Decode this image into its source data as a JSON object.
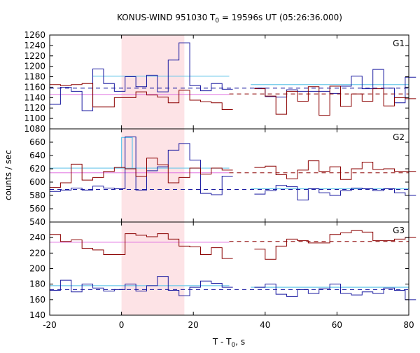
{
  "chart_data": {
    "type": "line",
    "title_main": "KONUS-WIND 951030 T",
    "title_sub": "0",
    "title_rest": " = 19596s UT (05:26:36.000)",
    "xlabel_main": "T - T",
    "xlabel_sub": "0",
    "xlabel_rest": ", s",
    "ylabel": "counts / sec",
    "x_ticks": [
      "-20",
      "0",
      "20",
      "40",
      "60",
      "80"
    ],
    "x_tick_values": [
      -20,
      0,
      20,
      40,
      60,
      80
    ],
    "xlim": [
      -20,
      80
    ],
    "highlight_interval": [
      0,
      17.5
    ],
    "colors": {
      "highlight": "#fde3e6",
      "red": "#8b0000",
      "blue": "#1a1aa0",
      "cyan": "#6cc8ea",
      "pink": "#e070e0",
      "dash_red": "#8b0000",
      "dash_blue": "#1a1aa0"
    },
    "panels": [
      {
        "label": "G1",
        "ylim": [
          1080,
          1260
        ],
        "y_ticks": [
          "1080",
          "1100",
          "1120",
          "1140",
          "1160",
          "1180",
          "1200",
          "1220",
          "1240",
          "1260"
        ],
        "y_tick_values": [
          1080,
          1100,
          1120,
          1140,
          1160,
          1180,
          1200,
          1220,
          1240,
          1260
        ],
        "background": 1146,
        "bg_dash_red": 1147,
        "bg_dash_blue": 1158,
        "bg_extent": [
          30,
          80
        ],
        "cyan_level": 1181,
        "cyan_range": [
          -8,
          30
        ],
        "cyan_level2": 1165,
        "cyan_range2": [
          36,
          80
        ],
        "red_x": [
          -20,
          -17,
          -14,
          -11,
          -8,
          -5,
          -2,
          1,
          4,
          7,
          10,
          13,
          16,
          19,
          22,
          25,
          28,
          31,
          34,
          37,
          40,
          43,
          46,
          49,
          52,
          55,
          58,
          61,
          64,
          67,
          70,
          73,
          76,
          79
        ],
        "red_y": [
          1165,
          1163,
          1165,
          1167,
          1122,
          1122,
          1140,
          1140,
          1151,
          1145,
          1141,
          1130,
          1154,
          1135,
          1132,
          1130,
          1117,
          1121,
          1148,
          1157,
          1143,
          1108,
          1152,
          1133,
          1161,
          1106,
          1162,
          1123,
          1147,
          1133,
          1157,
          1124,
          1140,
          1138
        ],
        "blue_x": [
          -20,
          -17,
          -14,
          -11,
          -8,
          -5,
          -2,
          1,
          4,
          7,
          10,
          13,
          16,
          19,
          22,
          25,
          28,
          31,
          34,
          37,
          40,
          43,
          46,
          49,
          52,
          55,
          58,
          61,
          64,
          67,
          70,
          73,
          76,
          79
        ],
        "blue_y": [
          1127,
          1160,
          1152,
          1115,
          1195,
          1167,
          1152,
          1180,
          1161,
          1183,
          1151,
          1212,
          1245,
          1163,
          1153,
          1167,
          1156,
          1152,
          1159,
          1158,
          1142,
          1141,
          1155,
          1152,
          1152,
          1152,
          1148,
          1162,
          1181,
          1157,
          1194,
          1158,
          1130,
          1179
        ]
      },
      {
        "label": "G2",
        "ylim": [
          540,
          680
        ],
        "y_ticks": [
          "540",
          "560",
          "580",
          "600",
          "620",
          "640",
          "660"
        ],
        "y_tick_values": [
          540,
          560,
          580,
          600,
          620,
          640,
          660
        ],
        "background": 614,
        "bg_dash_red": 614,
        "bg_dash_blue": 589,
        "bg_extent": [
          30,
          80
        ],
        "cyan_level": 621,
        "cyan_range": [
          -20,
          30
        ],
        "cyan_level2": 590,
        "cyan_range2": [
          36,
          80
        ],
        "red_x": [
          -20,
          -17,
          -14,
          -11,
          -8,
          -5,
          -2,
          1,
          4,
          7,
          10,
          13,
          16,
          19,
          22,
          25,
          28,
          31,
          34,
          37,
          40,
          43,
          46,
          49,
          52,
          55,
          58,
          61,
          64,
          67,
          70,
          73,
          76,
          79
        ],
        "red_y": [
          592,
          599,
          627,
          603,
          607,
          616,
          622,
          620,
          609,
          636,
          626,
          599,
          607,
          621,
          612,
          621,
          618,
          603,
          615,
          622,
          624,
          611,
          605,
          618,
          632,
          616,
          623,
          604,
          620,
          630,
          619,
          620,
          616,
          616
        ],
        "blue_x": [
          -20,
          -17,
          -14,
          -11,
          -8,
          -5,
          -2,
          1,
          4,
          7,
          10,
          13,
          16,
          19,
          22,
          25,
          28,
          31,
          34,
          37,
          40,
          43,
          46,
          49,
          52,
          55,
          58,
          61,
          64,
          67,
          70,
          73,
          76,
          79
        ],
        "blue_y": [
          586,
          588,
          591,
          588,
          594,
          591,
          590,
          668,
          588,
          617,
          623,
          648,
          658,
          633,
          583,
          581,
          609,
          589,
          589,
          582,
          587,
          595,
          593,
          573,
          590,
          584,
          580,
          587,
          591,
          590,
          587,
          590,
          584,
          580
        ],
        "cyan_spike_x": [
          0,
          3
        ],
        "cyan_spike_y": 667
      },
      {
        "label": "G3",
        "ylim": [
          140,
          260
        ],
        "y_ticks": [
          "140",
          "160",
          "180",
          "200",
          "220",
          "240",
          "260"
        ],
        "y_tick_values": [
          140,
          160,
          180,
          200,
          220,
          240,
          260
        ],
        "background": 234,
        "bg_dash_red": 235,
        "bg_dash_blue": 173,
        "bg_extent": [
          30,
          80
        ],
        "cyan_level": 178,
        "cyan_range": [
          -20,
          30
        ],
        "cyan_level2": 176,
        "cyan_range2": [
          36,
          80
        ],
        "red_x": [
          -20,
          -17,
          -14,
          -11,
          -8,
          -5,
          -2,
          1,
          4,
          7,
          10,
          13,
          16,
          19,
          22,
          25,
          28,
          31,
          34,
          37,
          40,
          43,
          46,
          49,
          52,
          55,
          58,
          61,
          64,
          67,
          70,
          73,
          76,
          79
        ],
        "red_y": [
          244,
          235,
          237,
          226,
          224,
          218,
          218,
          245,
          243,
          241,
          245,
          238,
          229,
          228,
          218,
          227,
          213,
          228,
          221,
          225,
          212,
          229,
          238,
          236,
          233,
          233,
          244,
          246,
          249,
          247,
          236,
          236,
          238,
          240
        ],
        "blue_x": [
          -20,
          -17,
          -14,
          -11,
          -8,
          -5,
          -2,
          1,
          4,
          7,
          10,
          13,
          16,
          19,
          22,
          25,
          28,
          31,
          34,
          37,
          40,
          43,
          46,
          49,
          52,
          55,
          58,
          61,
          64,
          67,
          70,
          73,
          76,
          79
        ],
        "blue_y": [
          172,
          185,
          170,
          180,
          175,
          171,
          173,
          180,
          171,
          178,
          190,
          172,
          165,
          176,
          184,
          181,
          176,
          179,
          172,
          176,
          180,
          167,
          164,
          173,
          168,
          174,
          180,
          168,
          166,
          170,
          168,
          175,
          172,
          160
        ]
      }
    ],
    "legend": []
  }
}
